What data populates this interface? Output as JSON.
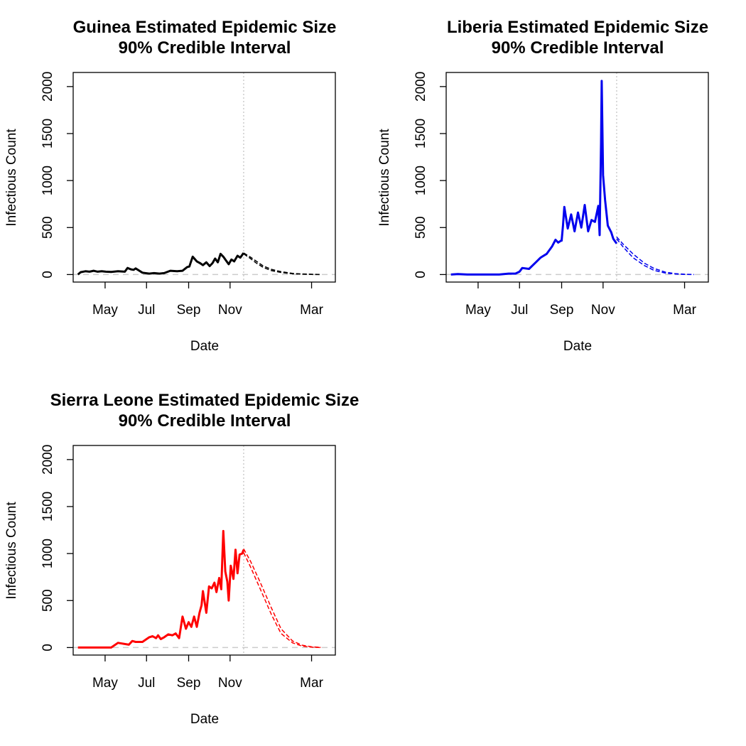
{
  "chart_data": [
    {
      "type": "line",
      "title_line1": "Guinea Estimated Epidemic Size",
      "title_line2": "90% Credible Interval",
      "xlabel": "Date",
      "ylabel": "Infectious Count",
      "xlim": [
        "2014-03-15",
        "2015-04-05"
      ],
      "ylim": [
        -80,
        2150
      ],
      "x_ticks": [
        {
          "date": "2014-05-01",
          "label": "May"
        },
        {
          "date": "2014-07-01",
          "label": "Jul"
        },
        {
          "date": "2014-09-01",
          "label": "Sep"
        },
        {
          "date": "2014-11-01",
          "label": "Nov"
        },
        {
          "date": "2015-03-01",
          "label": "Mar"
        }
      ],
      "y_ticks": [
        0,
        500,
        1000,
        1500,
        2000
      ],
      "forecast_start": "2014-11-21",
      "color": "#000000",
      "observed": {
        "x": [
          "2014-03-22",
          "2014-03-26",
          "2014-04-02",
          "2014-04-08",
          "2014-04-14",
          "2014-04-20",
          "2014-04-26",
          "2014-05-02",
          "2014-05-10",
          "2014-05-20",
          "2014-05-30",
          "2014-06-03",
          "2014-06-08",
          "2014-06-12",
          "2014-06-15",
          "2014-06-25",
          "2014-07-05",
          "2014-07-12",
          "2014-07-20",
          "2014-07-27",
          "2014-08-05",
          "2014-08-15",
          "2014-08-23",
          "2014-08-30",
          "2014-09-02",
          "2014-09-07",
          "2014-09-13",
          "2014-09-18",
          "2014-09-22",
          "2014-09-27",
          "2014-10-02",
          "2014-10-06",
          "2014-10-10",
          "2014-10-14",
          "2014-10-18",
          "2014-10-22",
          "2014-10-26",
          "2014-10-30",
          "2014-11-03",
          "2014-11-07",
          "2014-11-12",
          "2014-11-16",
          "2014-11-21"
        ],
        "values": [
          0,
          25,
          35,
          30,
          40,
          30,
          35,
          30,
          28,
          35,
          30,
          70,
          55,
          50,
          65,
          20,
          10,
          15,
          10,
          15,
          40,
          35,
          40,
          80,
          85,
          190,
          140,
          120,
          100,
          130,
          90,
          120,
          170,
          130,
          220,
          190,
          150,
          110,
          160,
          140,
          200,
          180,
          230
        ]
      },
      "forecast": {
        "x": [
          "2014-11-21",
          "2014-12-01",
          "2014-12-10",
          "2014-12-20",
          "2015-01-01",
          "2015-01-15",
          "2015-02-01",
          "2015-02-15",
          "2015-03-01",
          "2015-03-15"
        ],
        "upper": [
          230,
          185,
          140,
          90,
          55,
          30,
          12,
          6,
          3,
          0
        ],
        "lower": [
          220,
          170,
          120,
          75,
          42,
          22,
          8,
          4,
          1,
          0
        ]
      }
    },
    {
      "type": "line",
      "title_line1": "Liberia Estimated Epidemic Size",
      "title_line2": "90% Credible Interval",
      "xlabel": "Date",
      "ylabel": "Infectious Count",
      "xlim": [
        "2014-03-15",
        "2015-04-05"
      ],
      "ylim": [
        -80,
        2150
      ],
      "x_ticks": [
        {
          "date": "2014-05-01",
          "label": "May"
        },
        {
          "date": "2014-07-01",
          "label": "Jul"
        },
        {
          "date": "2014-09-01",
          "label": "Sep"
        },
        {
          "date": "2014-11-01",
          "label": "Nov"
        },
        {
          "date": "2015-03-01",
          "label": "Mar"
        }
      ],
      "y_ticks": [
        0,
        500,
        1000,
        1500,
        2000
      ],
      "forecast_start": "2014-11-21",
      "color": "#0000ee",
      "observed": {
        "x": [
          "2014-03-22",
          "2014-04-01",
          "2014-04-15",
          "2014-05-01",
          "2014-06-01",
          "2014-06-15",
          "2014-06-25",
          "2014-07-01",
          "2014-07-05",
          "2014-07-15",
          "2014-07-25",
          "2014-08-01",
          "2014-08-10",
          "2014-08-18",
          "2014-08-23",
          "2014-08-27",
          "2014-08-31",
          "2014-09-01",
          "2014-09-03",
          "2014-09-05",
          "2014-09-10",
          "2014-09-15",
          "2014-09-20",
          "2014-09-25",
          "2014-09-30",
          "2014-10-05",
          "2014-10-10",
          "2014-10-15",
          "2014-10-20",
          "2014-10-25",
          "2014-10-27",
          "2014-10-29",
          "2014-10-30",
          "2014-11-01",
          "2014-11-04",
          "2014-11-08",
          "2014-11-13",
          "2014-11-16",
          "2014-11-21"
        ],
        "values": [
          0,
          5,
          0,
          0,
          0,
          10,
          10,
          30,
          70,
          60,
          130,
          180,
          220,
          300,
          370,
          340,
          360,
          360,
          520,
          720,
          490,
          640,
          460,
          660,
          500,
          740,
          460,
          580,
          560,
          730,
          420,
          1400,
          2060,
          1060,
          790,
          520,
          450,
          380,
          330
        ]
      },
      "forecast": {
        "x": [
          "2014-11-21",
          "2014-12-01",
          "2014-12-15",
          "2015-01-01",
          "2015-01-15",
          "2015-02-01",
          "2015-02-15",
          "2015-03-01",
          "2015-03-15"
        ],
        "upper": [
          400,
          320,
          220,
          120,
          65,
          25,
          10,
          3,
          0
        ],
        "lower": [
          380,
          290,
          180,
          95,
          45,
          15,
          6,
          2,
          0
        ]
      }
    },
    {
      "type": "line",
      "title_line1": "Sierra Leone Estimated Epidemic Size",
      "title_line2": "90% Credible Interval",
      "xlabel": "Date",
      "ylabel": "Infectious Count",
      "xlim": [
        "2014-03-15",
        "2015-04-05"
      ],
      "ylim": [
        -80,
        2150
      ],
      "x_ticks": [
        {
          "date": "2014-05-01",
          "label": "May"
        },
        {
          "date": "2014-07-01",
          "label": "Jul"
        },
        {
          "date": "2014-09-01",
          "label": "Sep"
        },
        {
          "date": "2014-11-01",
          "label": "Nov"
        },
        {
          "date": "2015-03-01",
          "label": "Mar"
        }
      ],
      "y_ticks": [
        0,
        500,
        1000,
        1500,
        2000
      ],
      "forecast_start": "2014-11-21",
      "color": "#ff0000",
      "observed": {
        "x": [
          "2014-03-22",
          "2014-04-15",
          "2014-05-10",
          "2014-05-20",
          "2014-06-05",
          "2014-06-10",
          "2014-06-15",
          "2014-06-25",
          "2014-07-05",
          "2014-07-10",
          "2014-07-15",
          "2014-07-18",
          "2014-07-22",
          "2014-07-27",
          "2014-08-02",
          "2014-08-08",
          "2014-08-13",
          "2014-08-18",
          "2014-08-23",
          "2014-08-28",
          "2014-09-01",
          "2014-09-05",
          "2014-09-09",
          "2014-09-13",
          "2014-09-17",
          "2014-09-20",
          "2014-09-22",
          "2014-09-27",
          "2014-10-01",
          "2014-10-05",
          "2014-10-09",
          "2014-10-12",
          "2014-10-16",
          "2014-10-19",
          "2014-10-22",
          "2014-10-25",
          "2014-10-28",
          "2014-10-30",
          "2014-11-02",
          "2014-11-06",
          "2014-11-09",
          "2014-11-12",
          "2014-11-15",
          "2014-11-19",
          "2014-11-21"
        ],
        "values": [
          0,
          0,
          0,
          50,
          30,
          70,
          60,
          60,
          110,
          120,
          100,
          130,
          90,
          110,
          140,
          130,
          150,
          100,
          330,
          200,
          270,
          220,
          330,
          220,
          370,
          450,
          600,
          370,
          650,
          630,
          690,
          590,
          740,
          620,
          1240,
          810,
          700,
          500,
          870,
          730,
          1040,
          790,
          990,
          1000,
          1040
        ]
      },
      "forecast": {
        "x": [
          "2014-11-21",
          "2014-12-01",
          "2014-12-15",
          "2015-01-01",
          "2015-01-15",
          "2015-02-01",
          "2015-02-15",
          "2015-03-01",
          "2015-03-15"
        ],
        "upper": [
          1050,
          920,
          700,
          420,
          200,
          70,
          25,
          8,
          2
        ],
        "lower": [
          1010,
          860,
          630,
          350,
          150,
          50,
          15,
          4,
          0
        ]
      }
    }
  ]
}
